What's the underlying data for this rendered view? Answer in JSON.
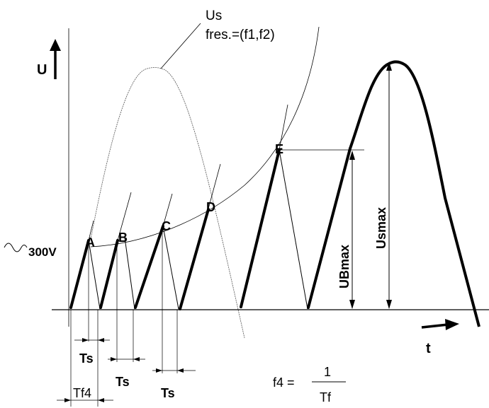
{
  "labels": {
    "u_axis": "U",
    "t_axis": "t",
    "us": "Us",
    "fres": "fres.=(f1,f2)",
    "v300": "300V",
    "point_a": "A",
    "point_b": "B",
    "point_c": "C",
    "point_d": "D",
    "point_e": "E",
    "ubmax": "UBmax",
    "usmax": "Usmax",
    "ts_1": "Ts",
    "ts_2": "Ts",
    "ts_3": "Ts",
    "tf4": "Tf4",
    "formula_lhs": "f4 =",
    "formula_num": "1",
    "formula_den": "Tf"
  }
}
